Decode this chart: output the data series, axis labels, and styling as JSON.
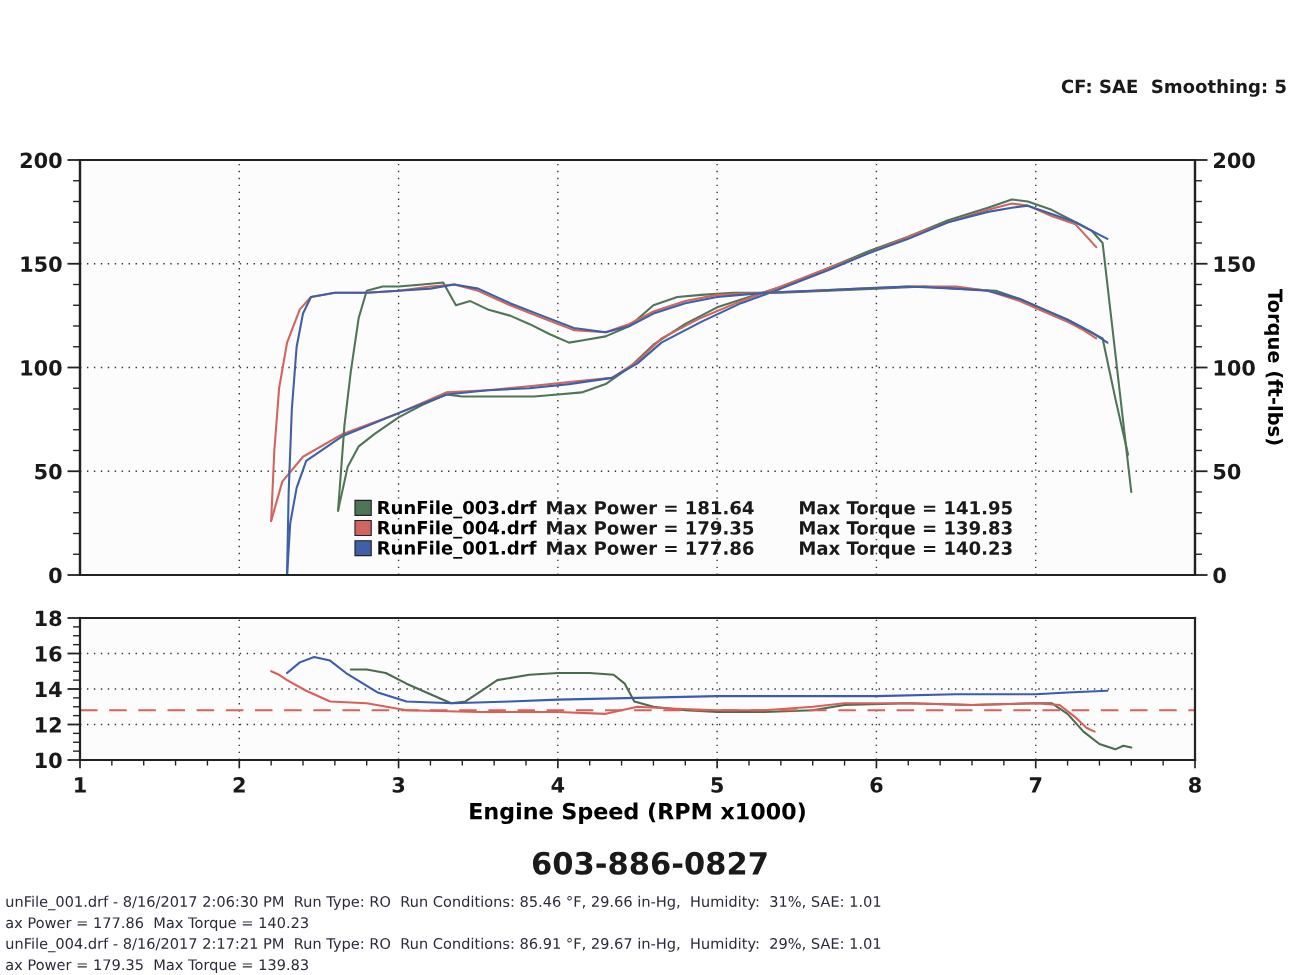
{
  "chart_data": [
    {
      "type": "line",
      "y2label": "Torque (ft-lbs)",
      "xlim": [
        1,
        8
      ],
      "xticks": [
        1,
        2,
        3,
        4,
        5,
        6,
        7,
        8
      ],
      "ylim": [
        0,
        200
      ],
      "yticks": [
        0,
        50,
        100,
        150,
        200
      ],
      "y2lim": [
        0,
        200
      ],
      "y2ticks": [
        0,
        50,
        100,
        150,
        200
      ],
      "tick_labels": "y",
      "grid": true,
      "legend": "bottom",
      "annotations": [
        "Max Power = 181.64",
        "Max Torque = 141.95",
        "Max Power = 179.35",
        "Max Torque = 139.83",
        "Max Power = 177.86",
        "Max Torque = 140.23",
        "CF: SAE  Smoothing: 5"
      ],
      "series": [
        {
          "name": "RunFile_003.drf",
          "color": "#4f7556",
          "x": [
            2.62,
            2.68,
            2.75,
            2.85,
            3.0,
            3.15,
            3.3,
            3.4,
            3.55,
            3.7,
            3.85,
            4.0,
            4.15,
            4.3,
            4.45,
            4.6,
            4.8,
            5.0,
            5.2,
            5.45,
            5.7,
            5.95,
            6.2,
            6.45,
            6.7,
            6.85,
            6.95,
            7.1,
            7.25,
            7.35,
            7.42,
            7.48,
            7.54,
            7.6
          ],
          "values": [
            31,
            52,
            62,
            68,
            76,
            82,
            87,
            86,
            86,
            86,
            86,
            87,
            88,
            92,
            100,
            111,
            121,
            129,
            134,
            140,
            148,
            156,
            163,
            171,
            177,
            181,
            180,
            176,
            170,
            166,
            160,
            120,
            80,
            40
          ]
        },
        {
          "name": "RunFile_004.drf",
          "color": "#d0655f",
          "x": [
            2.2,
            2.27,
            2.4,
            2.65,
            3.0,
            3.3,
            3.56,
            3.82,
            4.07,
            4.34,
            4.5,
            4.65,
            4.9,
            5.15,
            5.4,
            5.7,
            5.95,
            6.2,
            6.45,
            6.7,
            6.85,
            6.95,
            7.1,
            7.25,
            7.38
          ],
          "values": [
            26,
            45,
            57,
            68,
            78,
            88,
            89,
            91,
            93,
            95,
            103,
            114,
            124,
            132,
            139,
            148,
            155,
            163,
            170,
            176,
            179,
            178,
            173,
            169,
            158
          ]
        },
        {
          "name": "RunFile_001.drf",
          "color": "#3f5fa6",
          "x": [
            2.3,
            2.32,
            2.36,
            2.42,
            2.65,
            3.0,
            3.3,
            3.56,
            3.82,
            4.07,
            4.34,
            4.5,
            4.65,
            4.9,
            5.15,
            5.4,
            5.7,
            5.95,
            6.2,
            6.45,
            6.7,
            6.85,
            6.95,
            7.1,
            7.25,
            7.35,
            7.45
          ],
          "values": [
            0,
            25,
            42,
            55,
            67,
            78,
            87,
            89,
            90,
            92,
            95,
            102,
            112,
            122,
            131,
            138,
            147,
            155,
            162,
            170,
            175,
            177,
            178,
            174,
            170,
            166,
            162
          ]
        },
        {
          "color": "#4f7556",
          "x": [
            2.62,
            2.66,
            2.7,
            2.75,
            2.8,
            2.9,
            3.0,
            3.15,
            3.28,
            3.36,
            3.45,
            3.56,
            3.7,
            3.82,
            3.95,
            4.07,
            4.15,
            4.3,
            4.45,
            4.6,
            4.75,
            4.9,
            5.1,
            5.4,
            5.7,
            6.0,
            6.3,
            6.5,
            6.75,
            6.9,
            7.05,
            7.2,
            7.32,
            7.42,
            7.5,
            7.58
          ],
          "values": [
            31,
            72,
            98,
            124,
            137,
            139,
            139,
            140,
            141,
            130,
            132,
            128,
            125,
            121,
            116,
            112,
            113,
            115,
            120,
            130,
            134,
            135,
            136,
            136,
            137,
            138,
            139,
            138,
            137,
            133,
            128,
            123,
            118,
            114,
            85,
            58
          ]
        },
        {
          "color": "#d0655f",
          "x": [
            2.2,
            2.22,
            2.25,
            2.3,
            2.38,
            2.45,
            2.6,
            2.8,
            3.0,
            3.2,
            3.35,
            3.5,
            3.7,
            3.9,
            4.1,
            4.3,
            4.45,
            4.6,
            4.8,
            5.0,
            5.3,
            5.6,
            5.9,
            6.2,
            6.5,
            6.7,
            6.9,
            7.05,
            7.2,
            7.3,
            7.38
          ],
          "values": [
            26,
            60,
            90,
            112,
            128,
            134,
            136,
            136,
            137,
            139,
            140,
            137,
            130,
            124,
            118,
            117,
            121,
            127,
            132,
            135,
            136,
            137,
            138,
            139,
            139,
            137,
            132,
            127,
            122,
            118,
            114
          ]
        },
        {
          "color": "#3f5fa6",
          "x": [
            2.3,
            2.31,
            2.33,
            2.36,
            2.4,
            2.45,
            2.6,
            2.8,
            3.0,
            3.2,
            3.35,
            3.5,
            3.7,
            3.9,
            4.1,
            4.3,
            4.45,
            4.6,
            4.8,
            5.0,
            5.3,
            5.6,
            5.9,
            6.2,
            6.5,
            6.7,
            6.9,
            7.05,
            7.2,
            7.35,
            7.45
          ],
          "values": [
            0,
            40,
            80,
            110,
            126,
            134,
            136,
            136,
            137,
            138,
            140,
            138,
            131,
            125,
            119,
            117,
            120,
            126,
            131,
            134,
            136,
            137,
            138,
            139,
            138,
            137,
            133,
            128,
            123,
            117,
            112
          ]
        }
      ]
    },
    {
      "type": "line",
      "xlabel": "Engine Speed (RPM x1000)",
      "xlim": [
        1,
        8
      ],
      "xticks": [
        1,
        2,
        3,
        4,
        5,
        6,
        7,
        8
      ],
      "ylim": [
        10,
        18
      ],
      "yticks": [
        10,
        12,
        14,
        16,
        18
      ],
      "grid": true,
      "ref_lines": [
        {
          "axis": "y",
          "value": 12.8,
          "color": "#d9605a",
          "line_style": "dashed"
        }
      ],
      "annotations": [
        "603-886-0827",
        "unFile_001.drf - 8/16/2017 2:06:30 PM  Run Type: RO  Run Conditions: 85.46 °F, 29.66 in-Hg,  Humidity:  31%, SAE: 1.01",
        "ax Power = 177.86  Max Torque = 140.23",
        "unFile_004.drf - 8/16/2017 2:17:21 PM  Run Type: RO  Run Conditions: 86.91 °F, 29.67 in-Hg,  Humidity:  29%, SAE: 1.01",
        "ax Power = 179.35  Max Torque = 139.83"
      ],
      "series": [
        {
          "color": "#4c6b4c",
          "x": [
            2.7,
            2.8,
            2.92,
            3.05,
            3.2,
            3.33,
            3.42,
            3.52,
            3.62,
            3.82,
            4.0,
            4.2,
            4.35,
            4.42,
            4.48,
            4.6,
            4.8,
            5.0,
            5.3,
            5.6,
            5.8,
            6.2,
            6.6,
            7.0,
            7.1,
            7.2,
            7.3,
            7.4,
            7.5,
            7.55,
            7.6
          ],
          "values": [
            15.1,
            15.1,
            14.9,
            14.3,
            13.7,
            13.2,
            13.3,
            13.9,
            14.5,
            14.8,
            14.9,
            14.9,
            14.8,
            14.3,
            13.3,
            13.0,
            12.8,
            12.7,
            12.7,
            12.8,
            13.1,
            13.2,
            13.1,
            13.2,
            13.2,
            12.6,
            11.6,
            10.9,
            10.6,
            10.8,
            10.7
          ]
        },
        {
          "color": "#d9605a",
          "x": [
            2.2,
            2.25,
            2.3,
            2.42,
            2.57,
            2.8,
            3.05,
            3.5,
            4.0,
            4.3,
            4.5,
            4.7,
            5.0,
            5.3,
            5.6,
            5.8,
            6.2,
            6.6,
            7.0,
            7.15,
            7.25,
            7.32,
            7.37
          ],
          "values": [
            15.0,
            14.8,
            14.5,
            13.9,
            13.3,
            13.2,
            12.8,
            12.7,
            12.7,
            12.6,
            13.0,
            12.9,
            12.8,
            12.8,
            13.0,
            13.2,
            13.2,
            13.1,
            13.2,
            13.1,
            12.4,
            11.8,
            11.6
          ]
        },
        {
          "color": "#3a5bb0",
          "x": [
            2.3,
            2.38,
            2.47,
            2.57,
            2.67,
            2.87,
            3.05,
            3.34,
            3.7,
            4.0,
            4.5,
            5.0,
            5.5,
            6.0,
            6.5,
            7.0,
            7.2,
            7.45
          ],
          "values": [
            14.9,
            15.5,
            15.8,
            15.6,
            14.9,
            13.8,
            13.3,
            13.2,
            13.3,
            13.4,
            13.5,
            13.6,
            13.6,
            13.6,
            13.7,
            13.7,
            13.8,
            13.9
          ]
        }
      ]
    }
  ]
}
